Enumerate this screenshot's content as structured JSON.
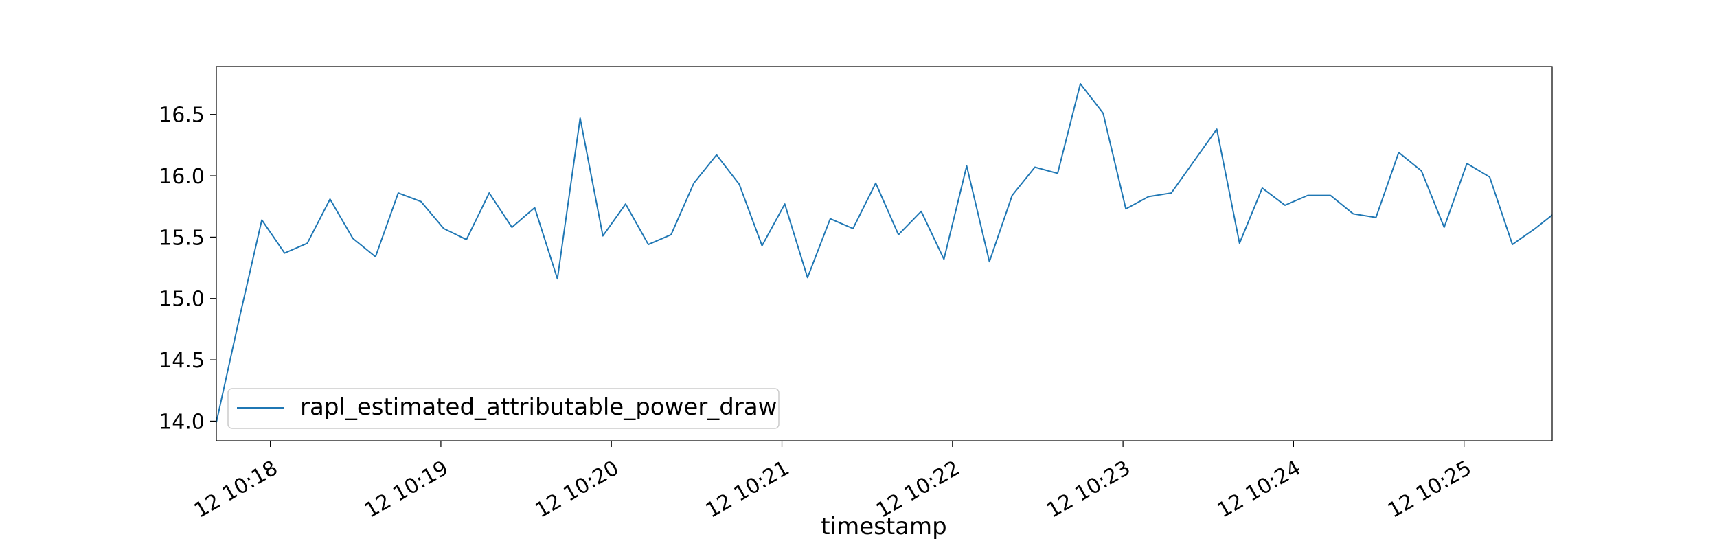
{
  "chart_data": {
    "type": "line",
    "title": "",
    "xlabel": "timestamp",
    "ylabel": "",
    "x_unit": "time",
    "x_tick_labels": [
      "12 10:18",
      "12 10:19",
      "12 10:20",
      "12 10:21",
      "12 10:22",
      "12 10:23",
      "12 10:24",
      "12 10:25"
    ],
    "x_ticks": [
      "10:18:00",
      "10:19:00",
      "10:20:00",
      "10:21:00",
      "10:22:00",
      "10:23:00",
      "10:24:00",
      "10:25:00"
    ],
    "xlim": [
      "10:17:41",
      "10:25:31"
    ],
    "y_ticks": [
      14.0,
      14.5,
      15.0,
      15.5,
      16.0,
      16.5
    ],
    "y_tick_labels": [
      "14.0",
      "14.5",
      "15.0",
      "15.5",
      "16.0",
      "16.5"
    ],
    "ylim": [
      13.84,
      16.89
    ],
    "grid": false,
    "legend": {
      "placement": "lower-left"
    },
    "series": [
      {
        "name": "rapl_estimated_attributable_power_draw",
        "color": "#1f77b4",
        "x": [
          "10:17:41",
          "10:17:49",
          "10:17:57",
          "10:18:05",
          "10:18:13",
          "10:18:21",
          "10:18:29",
          "10:18:37",
          "10:18:45",
          "10:18:53",
          "10:19:01",
          "10:19:09",
          "10:19:17",
          "10:19:25",
          "10:19:33",
          "10:19:41",
          "10:19:49",
          "10:19:57",
          "10:20:05",
          "10:20:13",
          "10:20:21",
          "10:20:29",
          "10:20:37",
          "10:20:45",
          "10:20:53",
          "10:21:01",
          "10:21:09",
          "10:21:17",
          "10:21:25",
          "10:21:33",
          "10:21:41",
          "10:21:49",
          "10:21:57",
          "10:22:05",
          "10:22:13",
          "10:22:21",
          "10:22:29",
          "10:22:37",
          "10:22:45",
          "10:22:53",
          "10:23:01",
          "10:23:09",
          "10:23:17",
          "10:23:25",
          "10:23:33",
          "10:23:41",
          "10:23:49",
          "10:23:57",
          "10:24:05",
          "10:24:13",
          "10:24:21",
          "10:24:29",
          "10:24:37",
          "10:24:45",
          "10:24:53",
          "10:25:01",
          "10:25:09",
          "10:25:17",
          "10:25:25",
          "10:25:31"
        ],
        "values": [
          13.99,
          14.83,
          15.64,
          15.37,
          15.45,
          15.81,
          15.49,
          15.34,
          15.86,
          15.79,
          15.57,
          15.48,
          15.86,
          15.58,
          15.74,
          15.16,
          16.47,
          15.51,
          15.77,
          15.44,
          15.52,
          15.94,
          16.17,
          15.93,
          15.43,
          15.77,
          15.17,
          15.65,
          15.57,
          15.94,
          15.52,
          15.71,
          15.32,
          16.08,
          15.3,
          15.84,
          16.07,
          16.02,
          16.75,
          16.51,
          15.73,
          15.83,
          15.86,
          16.12,
          16.38,
          15.45,
          15.9,
          15.76,
          15.84,
          15.84,
          15.69,
          15.66,
          16.19,
          16.04,
          15.58,
          16.1,
          15.99,
          15.44,
          15.57,
          15.68
        ]
      }
    ]
  }
}
